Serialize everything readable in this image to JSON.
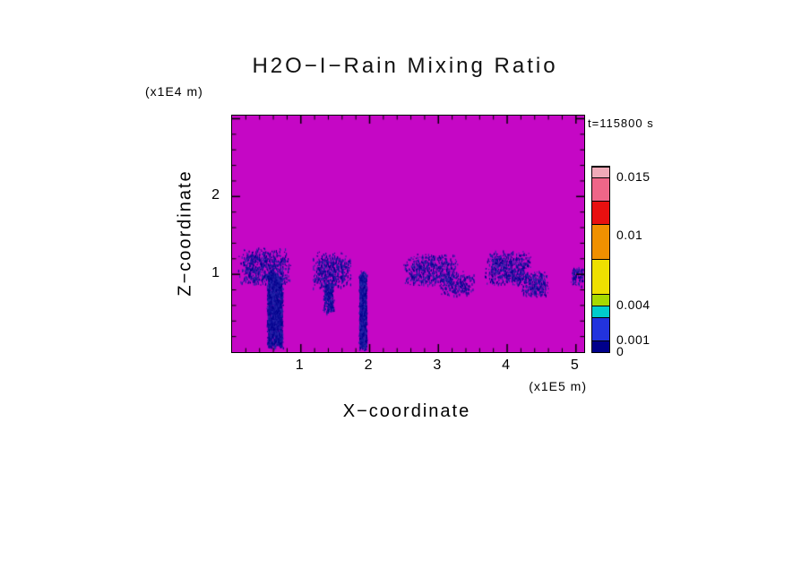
{
  "chart_data": {
    "type": "heatmap",
    "title": "H2O−I−Rain Mixing Ratio",
    "xlabel": "X−coordinate",
    "ylabel": "Z−coordinate",
    "x_units": "(x1E5 m)",
    "y_units": "(x1E4 m)",
    "time_label": "t=115800 s",
    "x_range": [
      0,
      5.12
    ],
    "z_range": [
      0,
      3.04
    ],
    "x_ticks": [
      1,
      2,
      3,
      4,
      5
    ],
    "x_tick_labels": [
      "1",
      "2",
      "3",
      "4",
      "5"
    ],
    "z_ticks": [
      1,
      2
    ],
    "z_tick_labels": [
      "1",
      "2"
    ],
    "minor_tick_step": 0.2,
    "grid": false,
    "background_field": {
      "value": 0.0,
      "color": "#C507C5"
    },
    "rain_speckle_colors": [
      "#00008B",
      "#10109A",
      "#2626AA"
    ],
    "colorbar": {
      "position": "right",
      "vmin": 0,
      "vmax": 0.0159,
      "tick_labels": [
        "0.015",
        "0.01",
        "0.004",
        "0.001",
        "0"
      ],
      "tick_values": [
        0.015,
        0.01,
        0.004,
        0.001,
        0
      ],
      "segments": [
        {
          "from": 0.0,
          "to": 0.001,
          "color": "#00008B"
        },
        {
          "from": 0.001,
          "to": 0.003,
          "color": "#2233DD"
        },
        {
          "from": 0.003,
          "to": 0.004,
          "color": "#00CCCC"
        },
        {
          "from": 0.004,
          "to": 0.005,
          "color": "#A8D900"
        },
        {
          "from": 0.005,
          "to": 0.008,
          "color": "#EEE000"
        },
        {
          "from": 0.008,
          "to": 0.011,
          "color": "#F09000"
        },
        {
          "from": 0.011,
          "to": 0.013,
          "color": "#E81010"
        },
        {
          "from": 0.013,
          "to": 0.015,
          "color": "#EE6688"
        },
        {
          "from": 0.015,
          "to": 0.0159,
          "color": "#F0AAB8"
        }
      ]
    },
    "rain_regions": [
      {
        "x0": 0.08,
        "x1": 0.85,
        "z0": 0.85,
        "z1": 1.35,
        "density": 0.45,
        "type": "speckle"
      },
      {
        "x0": 0.5,
        "x1": 0.74,
        "z0": 0.05,
        "z1": 1.05,
        "density": 1.6,
        "type": "shaft"
      },
      {
        "x0": 1.15,
        "x1": 1.75,
        "z0": 0.82,
        "z1": 1.3,
        "density": 0.42,
        "type": "speckle"
      },
      {
        "x0": 1.32,
        "x1": 1.48,
        "z0": 0.5,
        "z1": 0.9,
        "density": 0.9,
        "type": "shaft"
      },
      {
        "x0": 1.84,
        "x1": 1.96,
        "z0": 0.02,
        "z1": 1.05,
        "density": 1.7,
        "type": "shaft"
      },
      {
        "x0": 2.48,
        "x1": 3.3,
        "z0": 0.85,
        "z1": 1.28,
        "density": 0.4,
        "type": "speckle"
      },
      {
        "x0": 3.0,
        "x1": 3.55,
        "z0": 0.72,
        "z1": 1.05,
        "density": 0.35,
        "type": "speckle"
      },
      {
        "x0": 3.65,
        "x1": 4.35,
        "z0": 0.85,
        "z1": 1.32,
        "density": 0.45,
        "type": "speckle"
      },
      {
        "x0": 4.2,
        "x1": 4.6,
        "z0": 0.7,
        "z1": 1.05,
        "density": 0.5,
        "type": "speckle"
      },
      {
        "x0": 4.92,
        "x1": 5.12,
        "z0": 0.85,
        "z1": 1.12,
        "density": 0.5,
        "type": "speckle"
      }
    ]
  }
}
